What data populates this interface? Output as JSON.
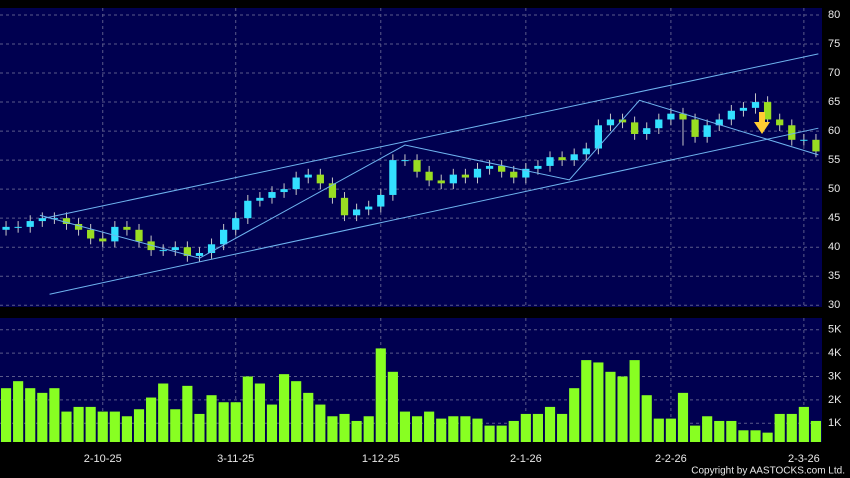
{
  "chart_data": {
    "type": "candlestick",
    "categories": [
      null,
      null,
      null,
      null,
      null,
      null,
      null,
      null,
      "2-10-25",
      null,
      null,
      null,
      null,
      null,
      null,
      null,
      null,
      null,
      null,
      "3-11-25",
      null,
      null,
      null,
      null,
      null,
      null,
      null,
      null,
      null,
      null,
      null,
      "1-12-25",
      null,
      null,
      null,
      null,
      null,
      null,
      null,
      null,
      null,
      null,
      null,
      "2-1-26",
      null,
      null,
      null,
      null,
      null,
      null,
      null,
      null,
      null,
      null,
      null,
      "2-2-26",
      null,
      null,
      null,
      null,
      null,
      null,
      null,
      null,
      null,
      null,
      "2-3-26",
      null
    ],
    "open": [
      43,
      43.5,
      43.5,
      44.5,
      45,
      45,
      44,
      43,
      41.5,
      41,
      43.5,
      43,
      41,
      39.5,
      39.5,
      40,
      38.5,
      39,
      40.5,
      43,
      45,
      48,
      48.5,
      49.5,
      50,
      52,
      52.5,
      51,
      48.5,
      45.5,
      46.5,
      47,
      49,
      55,
      55,
      53,
      51.5,
      51,
      52.5,
      52,
      53.5,
      54,
      53,
      52,
      53.5,
      54,
      55.5,
      55,
      56,
      57,
      61,
      62,
      61.5,
      59.5,
      60.5,
      62,
      63,
      62,
      59,
      61,
      62,
      63.5,
      64,
      65,
      62,
      61,
      58.5,
      58.5
    ],
    "high": [
      44.5,
      44.5,
      45.5,
      46,
      46,
      46,
      45,
      44,
      42.5,
      44.5,
      44.5,
      44,
      42,
      40.5,
      41,
      41,
      40,
      41.5,
      44,
      46,
      49,
      49.5,
      50.5,
      51,
      53,
      53.5,
      53.5,
      52,
      49.5,
      47.5,
      48,
      50,
      56,
      56,
      56,
      54,
      52.5,
      53.5,
      53.5,
      54.5,
      55,
      55,
      54,
      54.5,
      55,
      56.5,
      56.5,
      57,
      58,
      62,
      63,
      63,
      62.5,
      61.5,
      63,
      64,
      64,
      63,
      62,
      63,
      64.5,
      65,
      66.5,
      66,
      63,
      62,
      59.5,
      59.5
    ],
    "low": [
      42,
      42.5,
      42.5,
      43.5,
      44,
      43,
      42,
      40.5,
      40,
      40,
      42,
      40,
      38.5,
      38.5,
      38.5,
      37.5,
      37.5,
      38,
      39.5,
      42,
      44,
      47,
      47.5,
      48.5,
      49,
      51,
      50,
      47.5,
      44.5,
      44.5,
      45.5,
      46,
      48,
      54,
      52,
      50.5,
      50,
      50,
      51,
      51,
      52.5,
      52,
      51,
      51,
      52.5,
      53,
      54,
      54,
      55,
      56,
      60,
      60.5,
      58.5,
      58.5,
      59.5,
      61,
      57.5,
      58,
      58,
      60,
      61,
      62.5,
      63,
      61,
      60,
      57.5,
      57.5,
      55.5
    ],
    "close": [
      43.5,
      43.5,
      44.5,
      45,
      45,
      44,
      43,
      41.5,
      41,
      43.5,
      43,
      41,
      39.5,
      39.5,
      40,
      38.5,
      39,
      40.5,
      43,
      45,
      48,
      48.5,
      49.5,
      50,
      52,
      52.5,
      51,
      48.5,
      45.5,
      46.5,
      47,
      49,
      55,
      55,
      53,
      51.5,
      51,
      52.5,
      52,
      53.5,
      54,
      53,
      52,
      53.5,
      54,
      55.5,
      55,
      56,
      57,
      61,
      62,
      61.5,
      59.5,
      60.5,
      62,
      63,
      62,
      59,
      61,
      62,
      63.5,
      64,
      65,
      62,
      61,
      58.5,
      58.5,
      56.5
    ],
    "up_color": "#33e0ff",
    "down_color": "#99dd22",
    "ylim": [
      29.7,
      81.2
    ],
    "yticks": [
      30,
      35,
      40,
      45,
      50,
      55,
      60,
      65,
      70,
      75,
      80
    ],
    "volume": {
      "color": "#88ff22",
      "axis": "y2",
      "values": [
        2500,
        2800,
        2500,
        2300,
        2500,
        1500,
        1700,
        1700,
        1500,
        1500,
        1300,
        1600,
        2100,
        2700,
        1600,
        2600,
        1400,
        2200,
        1900,
        1900,
        3000,
        2700,
        1800,
        3100,
        2800,
        2300,
        1800,
        1300,
        1400,
        1100,
        1300,
        4200,
        3200,
        1500,
        1300,
        1500,
        1200,
        1300,
        1300,
        1200,
        900,
        900,
        1100,
        1400,
        1400,
        1700,
        1400,
        2500,
        3700,
        3600,
        3200,
        3000,
        3700,
        2200,
        1200,
        1200,
        2300,
        900,
        1300,
        1100,
        1100,
        700,
        700,
        600,
        1400,
        1400,
        1700,
        1100
      ]
    },
    "y2lim": [
      200,
      5500
    ],
    "y2ticks": [
      {
        "value": 1000,
        "label": "1K"
      },
      {
        "value": 2000,
        "label": "2K"
      },
      {
        "value": 3000,
        "label": "3K"
      },
      {
        "value": 4000,
        "label": "4K"
      },
      {
        "value": 5000,
        "label": "5K"
      }
    ],
    "trendlines": [
      {
        "color": "#6fb4f0",
        "x": [
          3.2,
          67.2
        ],
        "y": [
          45,
          73.3
        ]
      },
      {
        "color": "#6fb4f0",
        "x": [
          3.6,
          67.2
        ],
        "y": [
          31.9,
          60.5
        ]
      },
      {
        "color": "#6fb4f0",
        "x": [
          2.8,
          16,
          33,
          46.6,
          52.4,
          67.2
        ],
        "y": [
          45.5,
          38.1,
          57.6,
          51.6,
          65.3,
          55.9
        ]
      }
    ],
    "grid": true,
    "copyright": "Copyright by AASTOCKS.com Ltd."
  }
}
